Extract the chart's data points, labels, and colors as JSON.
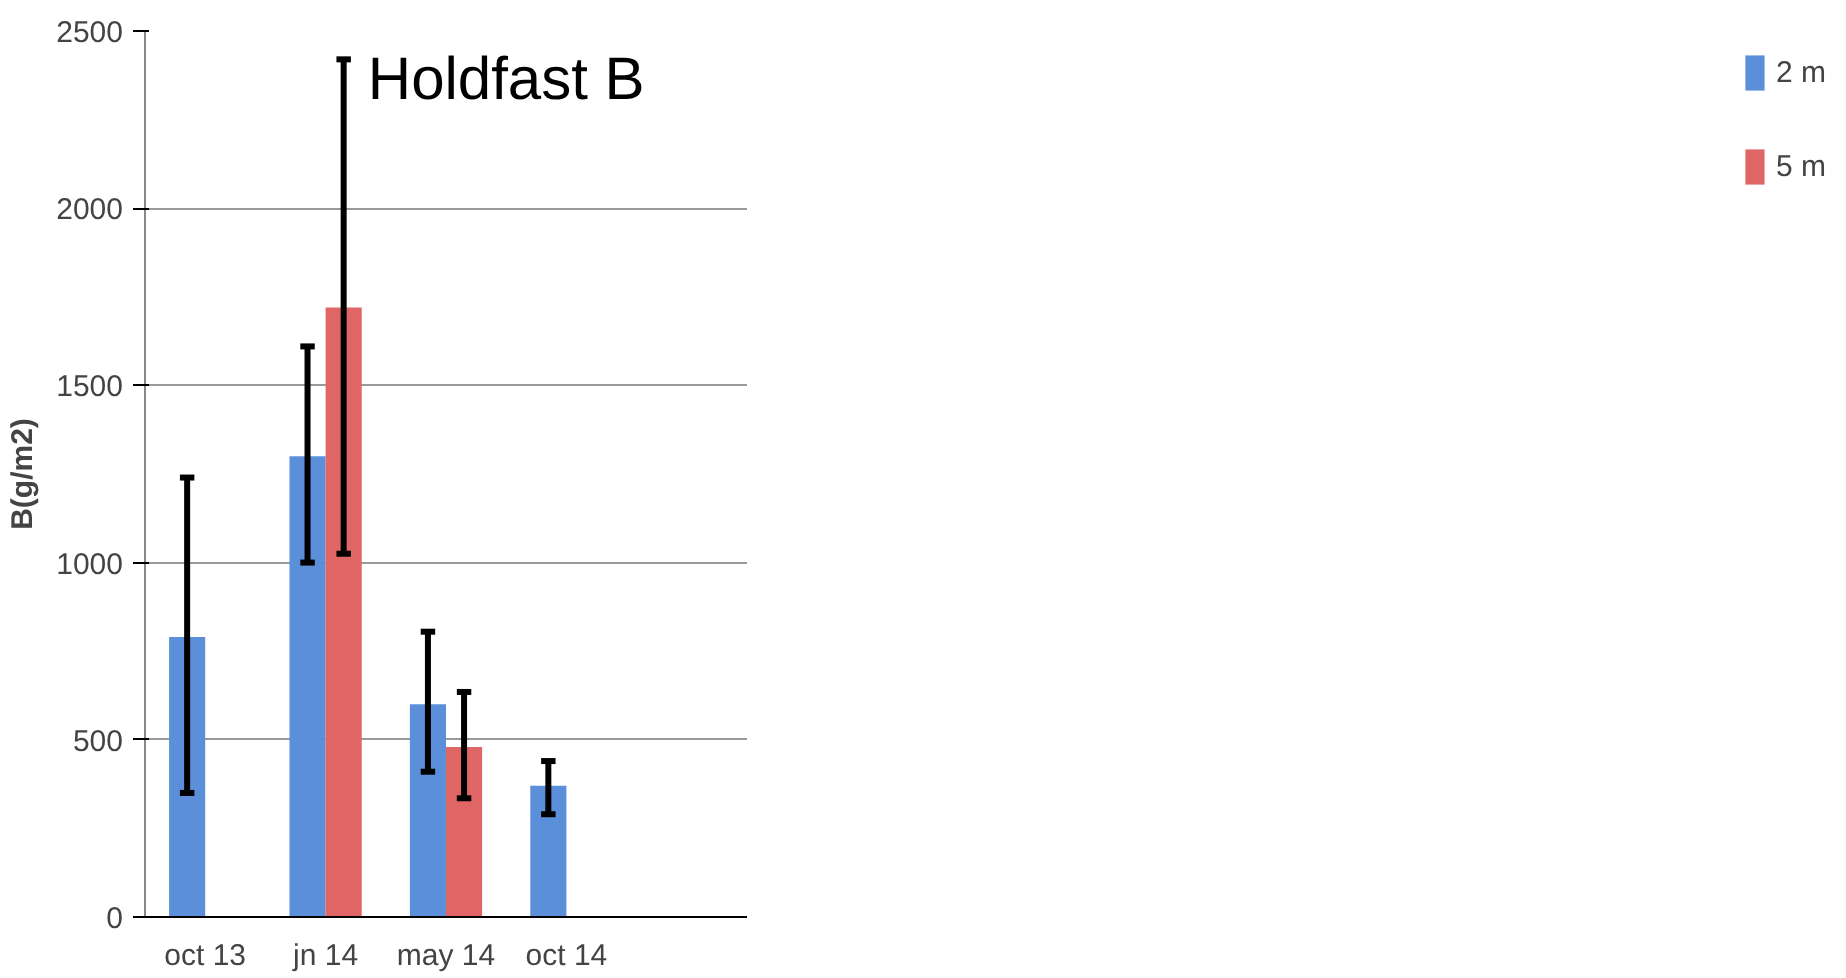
{
  "chart_data": {
    "type": "bar",
    "title": "Holdfast B",
    "ylabel": "B(g/m2)",
    "categories": [
      "oct 13",
      "jn 14",
      "may 14",
      "oct 14",
      null
    ],
    "series": [
      {
        "name": "2 m",
        "color": "#5b8fd9",
        "values": [
          790,
          1300,
          600,
          370,
          null
        ],
        "errors": [
          [
            350,
            1240
          ],
          [
            1000,
            1610
          ],
          [
            410,
            805
          ],
          [
            290,
            440
          ],
          null
        ]
      },
      {
        "name": "5 m",
        "color": "#e06666",
        "values": [
          null,
          1720,
          480,
          null,
          null
        ],
        "errors": [
          null,
          [
            1025,
            2420
          ],
          [
            335,
            635
          ],
          null,
          null
        ]
      }
    ],
    "ylim": [
      0,
      2500
    ],
    "yticks": [
      0,
      500,
      1000,
      1500,
      2000,
      2500
    ],
    "grid": "y",
    "legend": "right"
  }
}
